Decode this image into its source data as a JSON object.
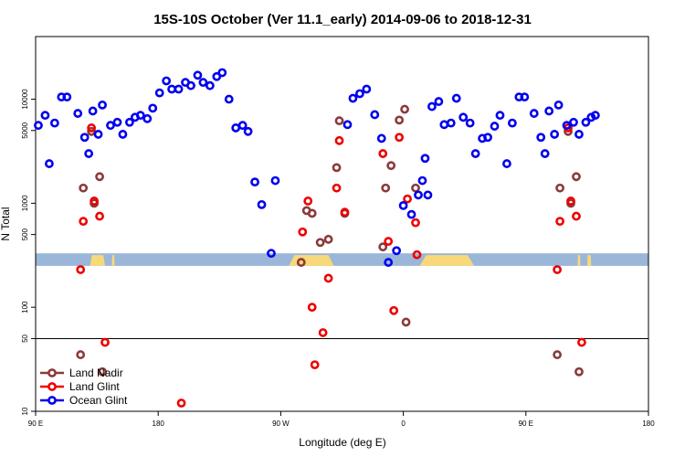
{
  "chart_data": {
    "type": "scatter",
    "title": "15S-10S October (Ver 11.1_early)   2014-09-06 to 2018-12-31",
    "xlabel": "Longitude (deg E)",
    "ylabel": "N Total",
    "yscale": "log",
    "xlim": [
      90,
      540
    ],
    "ylim": [
      10,
      40000
    ],
    "x_ticks": [
      {
        "value": 90,
        "label": "90 E"
      },
      {
        "value": 180,
        "label": "180"
      },
      {
        "value": 270,
        "label": "90 W"
      },
      {
        "value": 360,
        "label": "0"
      },
      {
        "value": 450,
        "label": "90 E"
      },
      {
        "value": 540,
        "label": "180"
      }
    ],
    "y_ticks": [
      {
        "value": 10,
        "label": "10"
      },
      {
        "value": 50,
        "label": "50"
      },
      {
        "value": 100,
        "label": "100"
      },
      {
        "value": 500,
        "label": "500"
      },
      {
        "value": 1000,
        "label": "1000"
      },
      {
        "value": 5000,
        "label": "5000"
      },
      {
        "value": 10000,
        "label": "10000"
      }
    ],
    "reference_line": 50,
    "land_ocean_strip": {
      "colors": {
        "ocean": "#9ab6d8",
        "land": "#f8d97a"
      },
      "y_bottom": 250,
      "y_top": 330,
      "land_ranges": [
        [
          130,
          141
        ],
        [
          146,
          148
        ],
        [
          276,
          309
        ],
        [
          372,
          412
        ],
        [
          488,
          490
        ],
        [
          495,
          498
        ]
      ]
    },
    "legend": {
      "position": "bottom-left",
      "items": [
        {
          "name": "Land Nadir",
          "color": "#8b3a3a"
        },
        {
          "name": "Land Glint",
          "color": "#ee0000"
        },
        {
          "name": "Ocean Glint",
          "color": "#0000ee"
        }
      ]
    },
    "series": [
      {
        "name": "Land Nadir",
        "color": "#8b3a3a",
        "points": [
          [
            123,
            35
          ],
          [
            125,
            1400
          ],
          [
            131,
            4900
          ],
          [
            133,
            1000
          ],
          [
            137,
            1800
          ],
          [
            139,
            24
          ],
          [
            285,
            270
          ],
          [
            289,
            850
          ],
          [
            293,
            800
          ],
          [
            299,
            420
          ],
          [
            305,
            450
          ],
          [
            311,
            2200
          ],
          [
            313,
            6200
          ],
          [
            317,
            800
          ],
          [
            345,
            380
          ],
          [
            347,
            1400
          ],
          [
            351,
            2300
          ],
          [
            357,
            6300
          ],
          [
            361,
            8000
          ],
          [
            362,
            72
          ],
          [
            369,
            1400
          ],
          [
            473,
            35
          ],
          [
            475,
            1400
          ],
          [
            481,
            4900
          ],
          [
            483,
            1000
          ],
          [
            487,
            1800
          ],
          [
            489,
            24
          ]
        ]
      },
      {
        "name": "Land Glint",
        "color": "#ee0000",
        "points": [
          [
            123,
            230
          ],
          [
            125,
            670
          ],
          [
            131,
            5300
          ],
          [
            133,
            1050
          ],
          [
            137,
            750
          ],
          [
            141,
            46
          ],
          [
            197,
            12
          ],
          [
            286,
            530
          ],
          [
            290,
            1050
          ],
          [
            293,
            100
          ],
          [
            295,
            28
          ],
          [
            301,
            57
          ],
          [
            305,
            190
          ],
          [
            311,
            1400
          ],
          [
            313,
            4000
          ],
          [
            317,
            820
          ],
          [
            345,
            3000
          ],
          [
            349,
            430
          ],
          [
            353,
            93
          ],
          [
            357,
            4300
          ],
          [
            363,
            1100
          ],
          [
            369,
            650
          ],
          [
            370,
            320
          ],
          [
            473,
            230
          ],
          [
            475,
            670
          ],
          [
            481,
            5300
          ],
          [
            483,
            1050
          ],
          [
            487,
            750
          ],
          [
            491,
            46
          ]
        ]
      },
      {
        "name": "Ocean Glint",
        "color": "#0000ee",
        "points": [
          [
            92,
            5600
          ],
          [
            97,
            7000
          ],
          [
            100,
            2400
          ],
          [
            104,
            5900
          ],
          [
            109,
            10500
          ],
          [
            113,
            10500
          ],
          [
            121,
            7300
          ],
          [
            126,
            4300
          ],
          [
            129,
            3000
          ],
          [
            132,
            7700
          ],
          [
            136,
            4600
          ],
          [
            139,
            8800
          ],
          [
            145,
            5600
          ],
          [
            150,
            6000
          ],
          [
            154,
            4600
          ],
          [
            159,
            6000
          ],
          [
            163,
            6700
          ],
          [
            167,
            7000
          ],
          [
            172,
            6500
          ],
          [
            176,
            8200
          ],
          [
            181,
            11500
          ],
          [
            186,
            15000
          ],
          [
            190,
            12500
          ],
          [
            195,
            12500
          ],
          [
            200,
            14500
          ],
          [
            204,
            13500
          ],
          [
            209,
            17000
          ],
          [
            213,
            14500
          ],
          [
            218,
            13500
          ],
          [
            223,
            16500
          ],
          [
            227,
            18000
          ],
          [
            232,
            10000
          ],
          [
            237,
            5300
          ],
          [
            242,
            5600
          ],
          [
            246,
            4900
          ],
          [
            251,
            1600
          ],
          [
            256,
            970
          ],
          [
            263,
            330
          ],
          [
            266,
            1650
          ],
          [
            319,
            5700
          ],
          [
            323,
            10200
          ],
          [
            328,
            11300
          ],
          [
            333,
            12500
          ],
          [
            339,
            7100
          ],
          [
            344,
            4200
          ],
          [
            349,
            270
          ],
          [
            355,
            350
          ],
          [
            360,
            950
          ],
          [
            366,
            780
          ],
          [
            371,
            1200
          ],
          [
            374,
            1650
          ],
          [
            376,
            2700
          ],
          [
            378,
            1200
          ],
          [
            381,
            8500
          ],
          [
            386,
            9500
          ],
          [
            390,
            5700
          ],
          [
            395,
            5900
          ],
          [
            399,
            10200
          ],
          [
            404,
            6700
          ],
          [
            409,
            5900
          ],
          [
            413,
            3000
          ],
          [
            418,
            4200
          ],
          [
            422,
            4300
          ],
          [
            427,
            5500
          ],
          [
            431,
            7000
          ],
          [
            436,
            2400
          ],
          [
            440,
            5900
          ],
          [
            445,
            10500
          ],
          [
            449,
            10500
          ],
          [
            456,
            7300
          ],
          [
            461,
            4300
          ],
          [
            464,
            3000
          ],
          [
            467,
            7700
          ],
          [
            471,
            4600
          ],
          [
            474,
            8800
          ],
          [
            480,
            5600
          ],
          [
            485,
            6000
          ],
          [
            489,
            4600
          ],
          [
            494,
            6000
          ],
          [
            498,
            6700
          ],
          [
            501,
            7000
          ]
        ]
      }
    ]
  }
}
